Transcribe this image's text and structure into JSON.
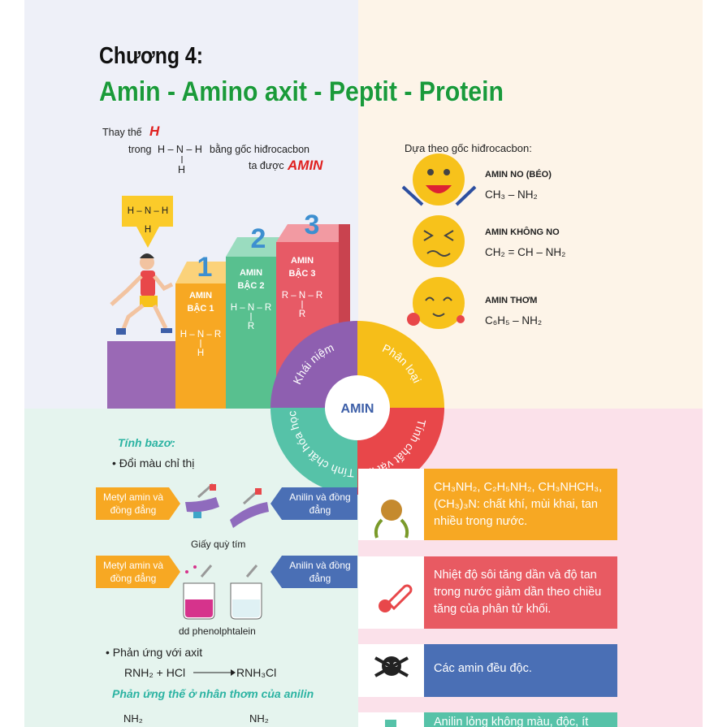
{
  "header": {
    "chapter": "Chương 4:",
    "title": "Amin - Amino axit - Peptit - Protein"
  },
  "concept": {
    "line1": "Thay thế",
    "h": "H",
    "line2": "trong",
    "formula": "H – N – H",
    "formula_below": "H",
    "line2_end": "bằng gốc hiđrocacbon",
    "line3": "ta được",
    "result": "AMIN",
    "badge": {
      "formula": "H – N – H",
      "below": "H"
    },
    "steps": [
      {
        "number": "1",
        "label": [
          "AMIN",
          "BẬC 1"
        ],
        "formula": "H – N – R",
        "below": "H"
      },
      {
        "number": "2",
        "label": [
          "AMIN",
          "BẬC 2"
        ],
        "formula": "H – N – R",
        "below": "R"
      },
      {
        "number": "3",
        "label": [
          "AMIN",
          "BẬC 3"
        ],
        "formula": "R – N – R",
        "below": "R"
      }
    ]
  },
  "classification": {
    "heading": "Dựa theo gốc hiđrocacbon:",
    "items": [
      {
        "name": "AMIN NO (BÉO)",
        "formula": "CH₃ – NH₂"
      },
      {
        "name": "AMIN KHÔNG NO",
        "formula": "CH₂ = CH – NH₂"
      },
      {
        "name": "AMIN THƠM",
        "formula": "C₆H₅ – NH₂"
      }
    ]
  },
  "wheel": {
    "center": "AMIN",
    "segments": [
      "Khái niệm",
      "Phân loại",
      "Tính chất vật lí",
      "Tính chất hóa học"
    ]
  },
  "chemical": {
    "basic": "Tính bazơ:",
    "indicator": "• Đổi màu chỉ thị",
    "row1": {
      "left": "Metyl amin và đồng đẳng",
      "right": "Anilin và đồng đẳng",
      "caption": "Giấy quỳ tím"
    },
    "row2": {
      "left": "Metyl amin và đồng đẳng",
      "right": "Anilin và đồng đẳng",
      "caption": "dd phenolphtalein"
    },
    "acid": "• Phản ứng với axit",
    "reactant": "RNH₂ + HCl",
    "product": "RNH₃Cl",
    "substitution": "Phản ứng thế ở nhân thơm của anilin",
    "nh2_left": "NH₂",
    "nh2_right": "NH₂"
  },
  "physical": [
    "CH₃NH₂, C₂H₅NH₂, CH₃NHCH₃, (CH₃)₃N: chất khí, mùi khai, tan nhiều trong nước.",
    "Nhiệt độ sôi tăng dần và độ tan trong nước giảm dần theo chiều tăng của phân tử khối.",
    "Các amin đều độc.",
    "Anilin lỏng không màu, độc, ít"
  ]
}
